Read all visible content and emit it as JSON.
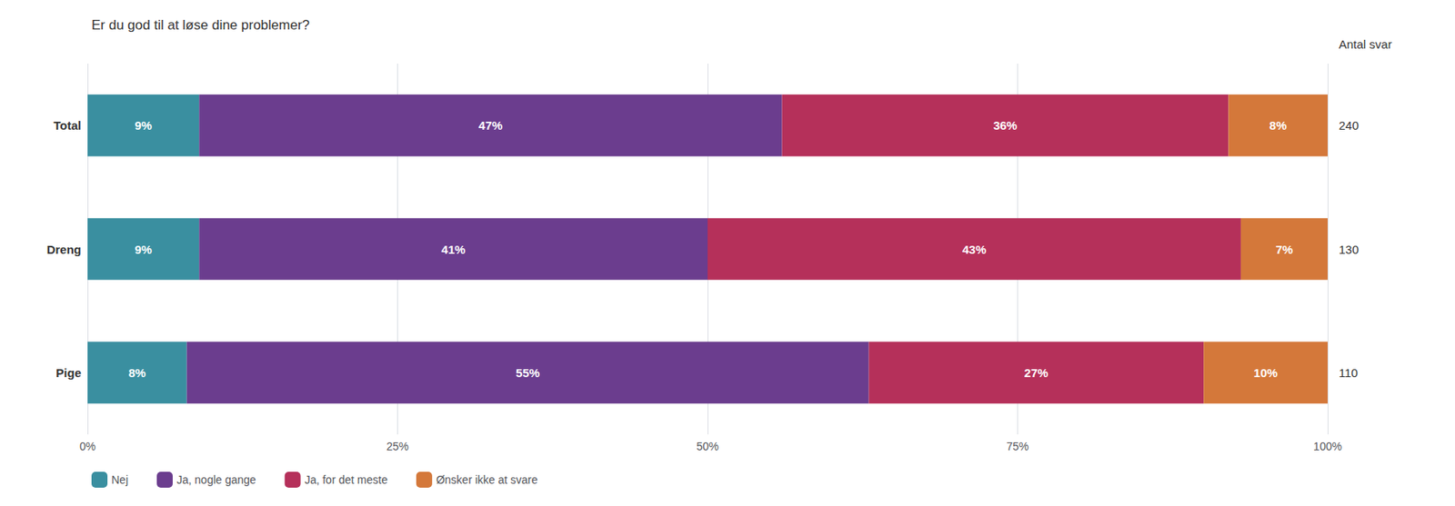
{
  "chart_data": {
    "type": "bar",
    "orientation": "horizontal",
    "stacked": true,
    "title": "Er du god til at løse dine problemer?",
    "categories": [
      "Total",
      "Dreng",
      "Pige"
    ],
    "series": [
      {
        "name": "Nej",
        "color": "#3a8fa0",
        "values": [
          9,
          9,
          8
        ],
        "value_labels": [
          "9%",
          "9%",
          "8%"
        ]
      },
      {
        "name": "Ja, nogle gange",
        "color": "#6b3d8e",
        "values": [
          47,
          41,
          55
        ],
        "value_labels": [
          "47%",
          "41%",
          "55%"
        ]
      },
      {
        "name": "Ja, for det meste",
        "color": "#b5305a",
        "values": [
          36,
          43,
          27
        ],
        "value_labels": [
          "36%",
          "43%",
          "27%"
        ]
      },
      {
        "name": "Ønsker ikke at svare",
        "color": "#d4783a",
        "values": [
          8,
          7,
          10
        ],
        "value_labels": [
          "8%",
          "7%",
          "10%"
        ]
      }
    ],
    "counts_title": "Antal svar",
    "counts": [
      240,
      130,
      110
    ],
    "xlim": [
      0,
      100
    ],
    "xticks": [
      {
        "value": 0,
        "label": "0%"
      },
      {
        "value": 25,
        "label": "25%"
      },
      {
        "value": 50,
        "label": "50%"
      },
      {
        "value": 75,
        "label": "75%"
      },
      {
        "value": 100,
        "label": "100%"
      }
    ],
    "grid": true,
    "data_labels": true,
    "legend": "bottom"
  }
}
